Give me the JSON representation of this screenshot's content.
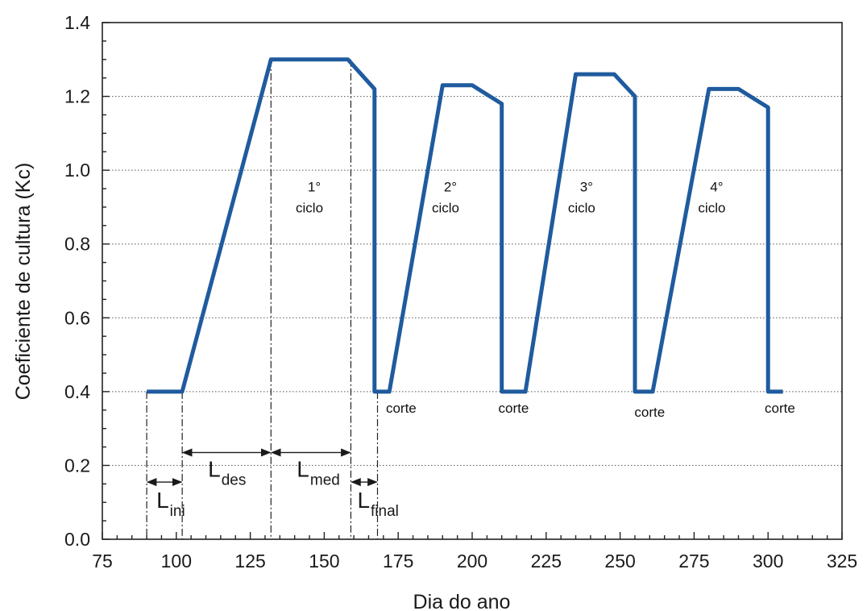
{
  "chart_data": {
    "type": "line",
    "xlabel": "Dia do ano",
    "ylabel": "Coeficiente de cultura (Kc)",
    "xlim": [
      75,
      325
    ],
    "ylim": [
      0.0,
      1.4
    ],
    "x_ticks": [
      "75",
      "100",
      "125",
      "150",
      "175",
      "200",
      "225",
      "250",
      "275",
      "300",
      "325"
    ],
    "y_ticks": [
      "0.0",
      "0.2",
      "0.4",
      "0.6",
      "0.8",
      "1.0",
      "1.2",
      "1.4"
    ],
    "grid": "horizontal dotted",
    "series_color": "#1f5b9e",
    "series": [
      {
        "x": [
          90,
          102,
          132,
          158,
          167,
          167,
          172,
          190,
          200,
          210,
          210,
          218,
          235,
          248,
          255,
          255,
          261,
          280,
          290,
          300,
          300,
          305
        ],
        "y": [
          0.4,
          0.4,
          1.3,
          1.3,
          1.22,
          0.4,
          0.4,
          1.23,
          1.23,
          1.18,
          0.4,
          0.4,
          1.26,
          1.26,
          1.2,
          0.4,
          0.4,
          1.22,
          1.22,
          1.17,
          0.4,
          0.4
        ]
      }
    ],
    "reference_lines_x": [
      90,
      102,
      132,
      159,
      168
    ],
    "annotations": {
      "cycles": [
        {
          "number": "1°",
          "word": "ciclo",
          "x": 145,
          "y": 0.96
        },
        {
          "number": "2°",
          "word": "ciclo",
          "x": 191,
          "y": 0.96
        },
        {
          "number": "3°",
          "word": "ciclo",
          "x": 237,
          "y": 0.96
        },
        {
          "number": "4°",
          "word": "ciclo",
          "x": 281,
          "y": 0.96
        }
      ],
      "cuts": [
        {
          "label": "corte",
          "x": 176,
          "y": 0.36
        },
        {
          "label": "corte",
          "x": 214,
          "y": 0.36
        },
        {
          "label": "corte",
          "x": 260,
          "y": 0.35
        },
        {
          "label": "corte",
          "x": 304,
          "y": 0.36
        }
      ],
      "phases": [
        {
          "main": "L",
          "sub": "ini",
          "x_start": 90,
          "x_end": 102,
          "arrow_y": 0.155
        },
        {
          "main": "L",
          "sub": "des",
          "x_start": 102,
          "x_end": 132,
          "arrow_y": 0.235
        },
        {
          "main": "L",
          "sub": "med",
          "x_start": 132,
          "x_end": 159,
          "arrow_y": 0.235
        },
        {
          "main": "L",
          "sub": "final",
          "x_start": 159,
          "x_end": 168,
          "arrow_y": 0.155
        }
      ]
    }
  }
}
